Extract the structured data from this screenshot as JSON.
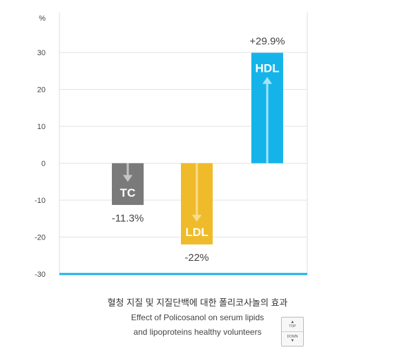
{
  "chart_data": {
    "type": "bar",
    "unit_label": "%",
    "categories": [
      "TC",
      "LDL",
      "HDL"
    ],
    "values": [
      -11.3,
      -22,
      29.9
    ],
    "value_labels": [
      "-11.3%",
      "-22%",
      "+29.9%"
    ],
    "colors": [
      "#7a7a7a",
      "#f0bb2a",
      "#14b4ea"
    ],
    "arrow_colors": [
      "#c4c4c4",
      "#f8dc90",
      "#a6e3f7"
    ],
    "ylim": [
      -30,
      35
    ],
    "yticks": [
      -30,
      -20,
      -10,
      0,
      10,
      20,
      30
    ],
    "grid": true,
    "baseline_color": "#1ab0e3"
  },
  "caption": {
    "korean": "혈청 지질 및 지질단백에 대한 폴리코사놀의 효과",
    "english_line1": "Effect of Policosanol on serum lipids",
    "english_line2": "and lipoproteins healthy volunteers"
  },
  "nav": {
    "top_label": "TOP",
    "down_label": "DOWN"
  }
}
